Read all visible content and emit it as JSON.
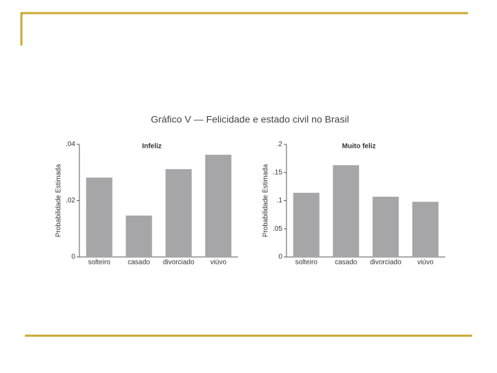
{
  "title": "Gráfico V — Felicidade e estado civil no Brasil",
  "chart_data": [
    {
      "type": "bar",
      "title": "Infeliz",
      "y_label": "Probabilidade Estimada",
      "categories": [
        "solteiro",
        "casado",
        "divorciado",
        "viúvo"
      ],
      "values": [
        0.0282,
        0.0147,
        0.0312,
        0.0363
      ],
      "color": "#a6a6a8",
      "ylim": [
        0,
        0.04
      ],
      "yticks": [
        0,
        {
          "value": 0.02,
          "label": ".02"
        },
        {
          "value": 0.04,
          "label": ".04"
        }
      ]
    },
    {
      "type": "bar",
      "title": "Muito feliz",
      "y_label": "Probabilidade Estimada",
      "categories": [
        "solteiro",
        "casado",
        "divorciado",
        "viúvo"
      ],
      "values": [
        0.114,
        0.163,
        0.107,
        0.098
      ],
      "color": "#a6a6a8",
      "ylim": [
        0,
        0.2
      ],
      "yticks": [
        0,
        {
          "value": 0.05,
          "label": ".05"
        },
        {
          "value": 0.1,
          "label": ".1"
        },
        {
          "value": 0.15,
          "label": ".15"
        },
        {
          "value": 0.2,
          "label": ".2"
        }
      ]
    }
  ]
}
